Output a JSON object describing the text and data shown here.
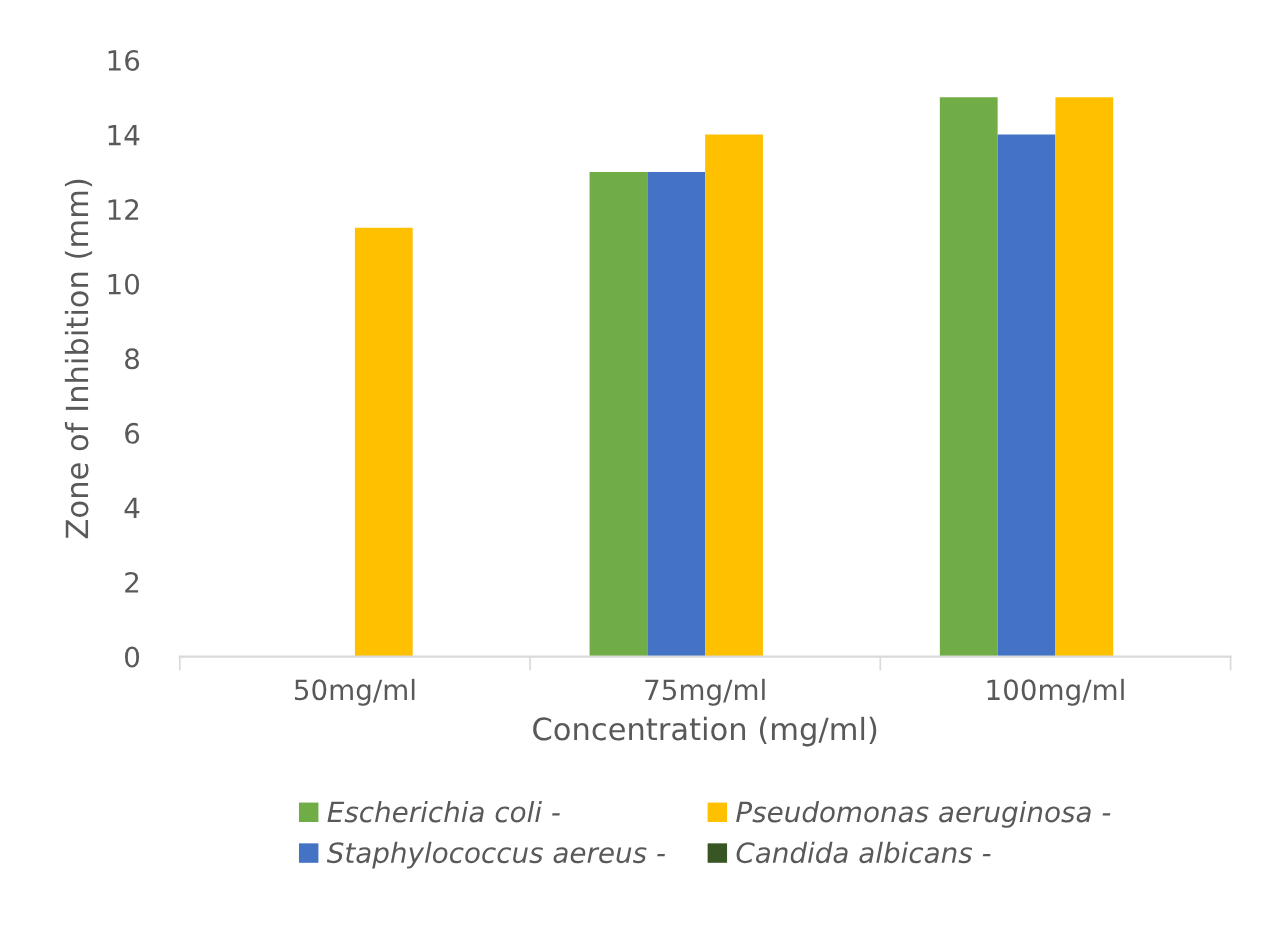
{
  "chart_data": {
    "type": "bar",
    "xlabel": "Concentration (mg/ml)",
    "ylabel": "Zone of Inhibition (mm)",
    "categories": [
      "50mg/ml",
      "75mg/ml",
      "100mg/ml"
    ],
    "series": [
      {
        "name": "Escherichia coli -",
        "color": "#70ad47",
        "values": [
          0,
          13,
          15
        ]
      },
      {
        "name": "Staphylococcus aereus -",
        "color": "#4472c4",
        "values": [
          0,
          13,
          14
        ]
      },
      {
        "name": "Pseudomonas aeruginosa -",
        "color": "#ffc000",
        "values": [
          11.5,
          14,
          15
        ]
      },
      {
        "name": "Candida albicans -",
        "color": "#375623",
        "values": [
          0,
          0,
          0
        ]
      }
    ],
    "ylim": [
      0,
      16
    ],
    "yticks": [
      0,
      2,
      4,
      6,
      8,
      10,
      12,
      14,
      16
    ],
    "grid": false,
    "legend": "bottom"
  }
}
